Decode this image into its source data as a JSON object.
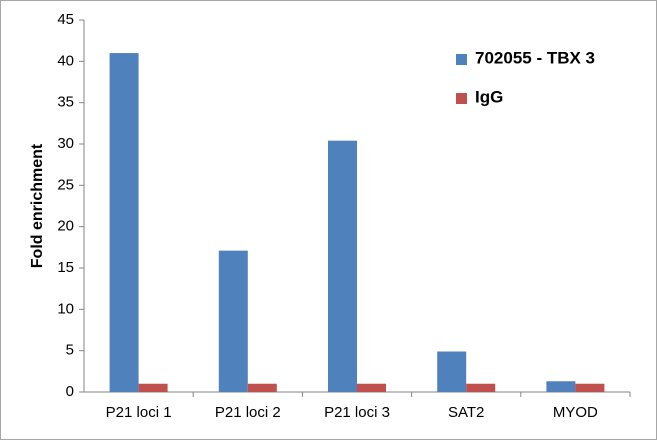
{
  "chart_data": {
    "type": "bar",
    "y_label": "Fold enrichment",
    "categories": [
      "P21 loci 1",
      "P21 loci 2",
      "P21 loci 3",
      "SAT2",
      "MYOD"
    ],
    "series": [
      {
        "name": "702055 - TBX 3",
        "color": "#4f81bd",
        "values": [
          41,
          17.1,
          30.4,
          4.9,
          1.3
        ]
      },
      {
        "name": "IgG",
        "color": "#c0504d",
        "values": [
          1,
          1,
          1,
          1,
          1
        ]
      }
    ],
    "ylim": [
      0,
      45
    ],
    "yticks": [
      0,
      5,
      10,
      15,
      20,
      25,
      30,
      35,
      40,
      45
    ],
    "grid": false,
    "legend": "top-right"
  }
}
